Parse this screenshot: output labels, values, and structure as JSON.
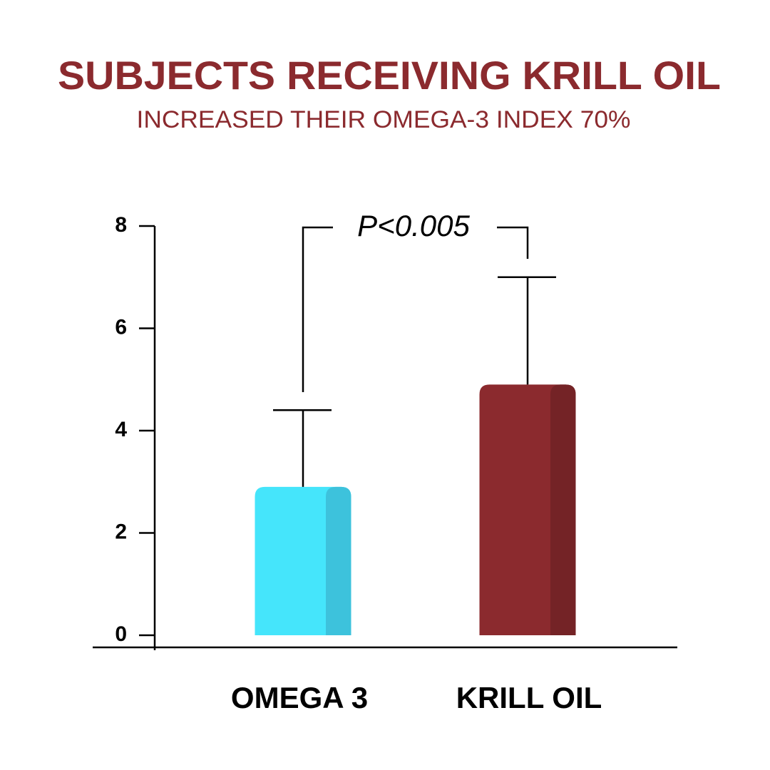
{
  "chart_data": {
    "type": "bar",
    "title": "SUBJECTS RECEIVING KRILL OIL",
    "subtitle": "INCREASED THEIR OMEGA-3 INDEX 70%",
    "categories": [
      "OMEGA 3",
      "KRILL OIL"
    ],
    "values": [
      2.9,
      4.9
    ],
    "errors": [
      1.5,
      2.1
    ],
    "colors": [
      "#45e5fb",
      "#8b2a2e"
    ],
    "shade_colors": [
      "#3dc2dc",
      "#742326"
    ],
    "annotation": "P<0.005",
    "ylim": [
      0,
      8
    ],
    "yticks": [
      0,
      2,
      4,
      6,
      8
    ]
  }
}
